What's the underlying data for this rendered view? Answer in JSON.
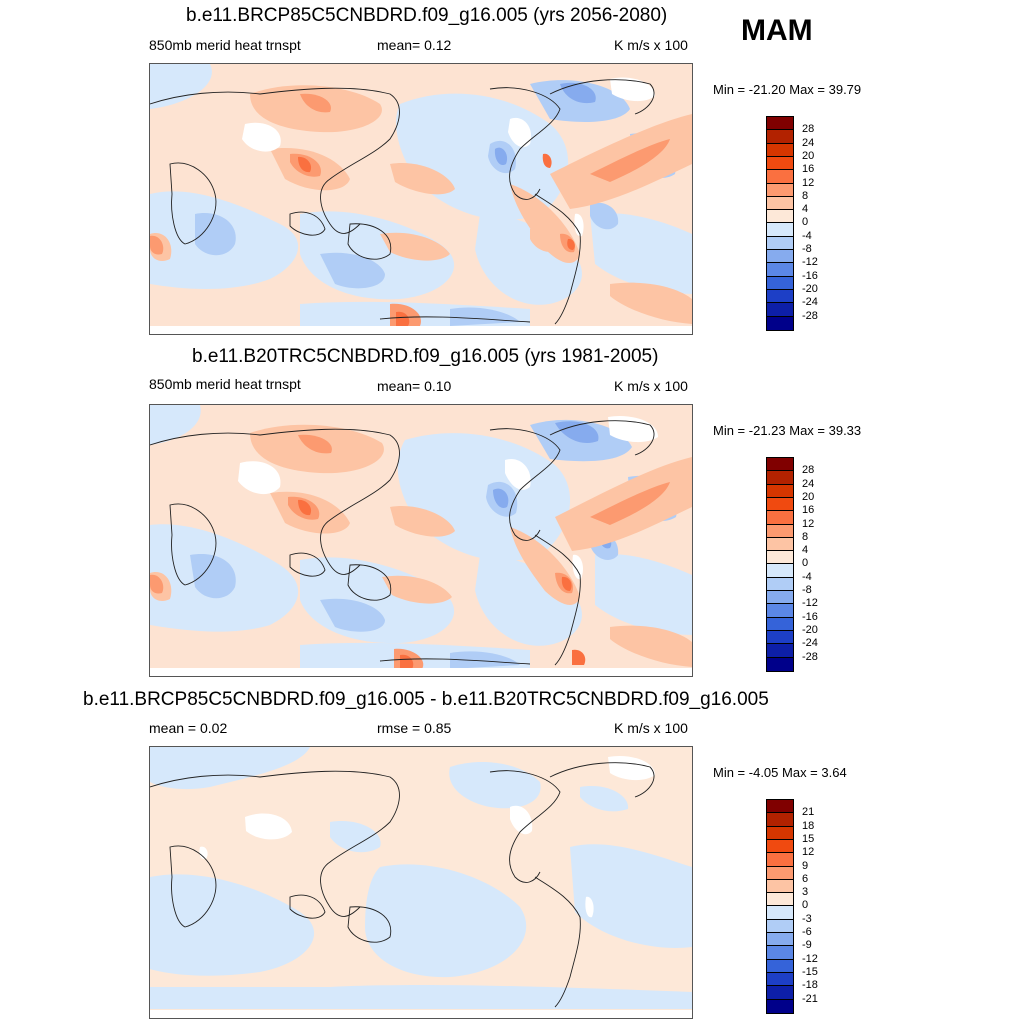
{
  "season": "MAM",
  "panels": [
    {
      "title": "b.e11.BRCP85C5CNBDRD.f09_g16.005 (yrs 2056-2080)",
      "left_label": "850mb merid heat trnspt",
      "center_label": "mean=   0.12",
      "units": "K m/s x 100",
      "minmax": "Min = -21.20 Max =  39.79",
      "colorbar_labels": [
        "28",
        "24",
        "20",
        "16",
        "12",
        "8",
        "4",
        "0",
        "-4",
        "-8",
        "-12",
        "-16",
        "-20",
        "-24",
        "-28"
      ],
      "colorbar_colors": [
        "#800000",
        "#b22200",
        "#d63600",
        "#f04a10",
        "#fa7040",
        "#fc9a70",
        "#fdc4a4",
        "#fde8d8",
        "#d6e8fb",
        "#b0cdf6",
        "#86abee",
        "#5b87e6",
        "#3563d9",
        "#1d3fc6",
        "#0d1fa8",
        "#00008a"
      ]
    },
    {
      "title": "b.e11.B20TRC5CNBDRD.f09_g16.005 (yrs 1981-2005)",
      "left_label": "850mb merid heat trnspt",
      "center_label": "mean=   0.10",
      "units": "K m/s x 100",
      "minmax": "Min = -21.23 Max =  39.33",
      "colorbar_labels": [
        "28",
        "24",
        "20",
        "16",
        "12",
        "8",
        "4",
        "0",
        "-4",
        "-8",
        "-12",
        "-16",
        "-20",
        "-24",
        "-28"
      ],
      "colorbar_colors": [
        "#800000",
        "#b22200",
        "#d63600",
        "#f04a10",
        "#fa7040",
        "#fc9a70",
        "#fdc4a4",
        "#fde8d8",
        "#d6e8fb",
        "#b0cdf6",
        "#86abee",
        "#5b87e6",
        "#3563d9",
        "#1d3fc6",
        "#0d1fa8",
        "#00008a"
      ]
    },
    {
      "title": "b.e11.BRCP85C5CNBDRD.f09_g16.005 - b.e11.B20TRC5CNBDRD.f09_g16.005",
      "left_label": "mean =   0.02",
      "center_label": "rmse =   0.85",
      "units": "K m/s x 100",
      "minmax": "Min =  -4.05 Max =   3.64",
      "colorbar_labels": [
        "21",
        "18",
        "15",
        "12",
        "9",
        "6",
        "3",
        "0",
        "-3",
        "-6",
        "-9",
        "-12",
        "-15",
        "-18",
        "-21"
      ],
      "colorbar_colors": [
        "#800000",
        "#b22200",
        "#d63600",
        "#f04a10",
        "#fa7040",
        "#fc9a70",
        "#fdc4a4",
        "#fde8d8",
        "#d6e8fb",
        "#b0cdf6",
        "#86abee",
        "#5b87e6",
        "#3563d9",
        "#1d3fc6",
        "#0d1fa8",
        "#00008a"
      ]
    }
  ]
}
